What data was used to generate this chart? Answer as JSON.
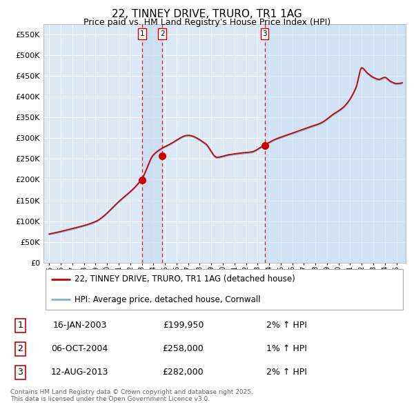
{
  "title": "22, TINNEY DRIVE, TRURO, TR1 1AG",
  "subtitle": "Price paid vs. HM Land Registry's House Price Index (HPI)",
  "title_fontsize": 11,
  "subtitle_fontsize": 9,
  "background_color": "#ffffff",
  "plot_bg_color": "#dce9f5",
  "grid_color": "#ffffff",
  "ylabel_values": [
    "£0",
    "£50K",
    "£100K",
    "£150K",
    "£200K",
    "£250K",
    "£300K",
    "£350K",
    "£400K",
    "£450K",
    "£500K",
    "£550K"
  ],
  "ylim": [
    0,
    575000
  ],
  "ytick_values": [
    0,
    50000,
    100000,
    150000,
    200000,
    250000,
    300000,
    350000,
    400000,
    450000,
    500000,
    550000
  ],
  "hpi_color": "#7ab3d9",
  "price_color": "#cc0000",
  "sale_marker_color": "#cc0000",
  "vline_color": "#cc0000",
  "vspan_color": "#c5dbef",
  "sale_dates": [
    2003.04,
    2004.76,
    2013.61
  ],
  "sale_prices": [
    199950,
    258000,
    282000
  ],
  "sale_labels": [
    "1",
    "2",
    "3"
  ],
  "legend_entries": [
    {
      "label": "22, TINNEY DRIVE, TRURO, TR1 1AG (detached house)",
      "color": "#cc0000"
    },
    {
      "label": "HPI: Average price, detached house, Cornwall",
      "color": "#7ab3d9"
    }
  ],
  "table_rows": [
    {
      "num": "1",
      "date": "16-JAN-2003",
      "price": "£199,950",
      "pct": "2% ↑ HPI"
    },
    {
      "num": "2",
      "date": "06-OCT-2004",
      "price": "£258,000",
      "pct": "1% ↑ HPI"
    },
    {
      "num": "3",
      "date": "12-AUG-2013",
      "price": "£282,000",
      "pct": "2% ↑ HPI"
    }
  ],
  "footnote": "Contains HM Land Registry data © Crown copyright and database right 2025.\nThis data is licensed under the Open Government Licence v3.0.",
  "xmin": 1994.5,
  "xmax": 2025.8,
  "xtick_years": [
    1995,
    1996,
    1997,
    1998,
    1999,
    2000,
    2001,
    2002,
    2003,
    2004,
    2005,
    2006,
    2007,
    2008,
    2009,
    2010,
    2011,
    2012,
    2013,
    2014,
    2015,
    2016,
    2017,
    2018,
    2019,
    2020,
    2021,
    2022,
    2023,
    2024,
    2025
  ]
}
